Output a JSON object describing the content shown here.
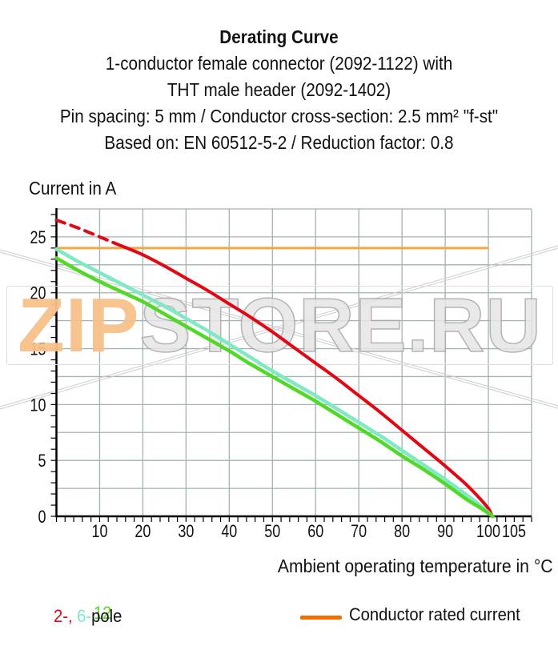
{
  "header": {
    "lines": [
      "Derating Curve",
      "1-conductor female connector (2092-1122) with",
      "THT male header (2092-1402)",
      "Pin spacing: 5 mm / Conductor cross-section: 2.5 mm² \"f-st\"",
      "Based on: EN 60512-5-2 / Reduction factor: 0.8"
    ]
  },
  "chart_data": {
    "type": "line",
    "title": "Derating Curve",
    "xlabel": "Ambient operating temperature in °C",
    "ylabel": "Current in A",
    "xlim": [
      0,
      110
    ],
    "ylim": [
      0,
      27.5
    ],
    "x_major_ticks": [
      10,
      20,
      30,
      40,
      50,
      60,
      70,
      80,
      90,
      100,
      105
    ],
    "y_major_ticks": [
      0,
      5,
      10,
      15,
      20,
      25
    ],
    "x_grid_step": 10,
    "y_grid_step": 2.5,
    "x_minor_tick_step": 2,
    "y_minor_tick_step": 1,
    "grid": true,
    "legend_position": "bottom",
    "axis_color": "#000000",
    "grid_color": "#a3b2b2",
    "series": [
      {
        "name": "2-pole",
        "color": "#e30613",
        "dash_until_x": 15,
        "points": [
          [
            0,
            26.5
          ],
          [
            5,
            25.8
          ],
          [
            10,
            25.0
          ],
          [
            15,
            24.2
          ],
          [
            20,
            23.4
          ],
          [
            25,
            22.4
          ],
          [
            30,
            21.3
          ],
          [
            35,
            20.2
          ],
          [
            40,
            19.0
          ],
          [
            45,
            17.8
          ],
          [
            50,
            16.5
          ],
          [
            55,
            15.1
          ],
          [
            60,
            13.7
          ],
          [
            65,
            12.3
          ],
          [
            70,
            10.8
          ],
          [
            75,
            9.3
          ],
          [
            80,
            7.7
          ],
          [
            85,
            6.1
          ],
          [
            90,
            4.5
          ],
          [
            95,
            2.8
          ],
          [
            98,
            1.6
          ],
          [
            100,
            0.7
          ],
          [
            100.8,
            0.1
          ]
        ]
      },
      {
        "name": "6-pole",
        "color": "#7fe9c4",
        "points": [
          [
            0,
            23.9
          ],
          [
            5,
            22.8
          ],
          [
            10,
            21.8
          ],
          [
            15,
            20.8
          ],
          [
            20,
            19.8
          ],
          [
            25,
            18.8
          ],
          [
            30,
            17.7
          ],
          [
            35,
            16.6
          ],
          [
            40,
            15.4
          ],
          [
            45,
            14.2
          ],
          [
            50,
            13.0
          ],
          [
            55,
            11.9
          ],
          [
            60,
            10.8
          ],
          [
            65,
            9.6
          ],
          [
            70,
            8.4
          ],
          [
            75,
            7.2
          ],
          [
            80,
            5.9
          ],
          [
            85,
            4.6
          ],
          [
            90,
            3.3
          ],
          [
            95,
            1.9
          ],
          [
            98,
            1.0
          ],
          [
            101,
            0
          ]
        ]
      },
      {
        "name": "12-pole",
        "color": "#52d827",
        "points": [
          [
            0,
            23.1
          ],
          [
            5,
            22.0
          ],
          [
            10,
            21.0
          ],
          [
            15,
            20.1
          ],
          [
            20,
            19.2
          ],
          [
            25,
            18.1
          ],
          [
            30,
            17.0
          ],
          [
            35,
            15.9
          ],
          [
            40,
            14.8
          ],
          [
            45,
            13.6
          ],
          [
            50,
            12.5
          ],
          [
            55,
            11.4
          ],
          [
            60,
            10.3
          ],
          [
            65,
            9.1
          ],
          [
            70,
            7.9
          ],
          [
            75,
            6.7
          ],
          [
            80,
            5.4
          ],
          [
            85,
            4.2
          ],
          [
            90,
            2.9
          ],
          [
            95,
            1.5
          ],
          [
            98,
            0.8
          ],
          [
            101,
            0
          ]
        ]
      }
    ],
    "rated_current_line": {
      "label": "Conductor rated current",
      "value": 24,
      "x_start": 0,
      "x_end": 100,
      "color": "#f2a843"
    }
  },
  "legend": {
    "poles": {
      "parts": [
        {
          "text": "2-,",
          "color": "#e30613"
        },
        {
          "text": "6-",
          "color": "#7fe9c4"
        },
        {
          "text": "12",
          "color": "#52d827"
        },
        {
          "text": "pole",
          "color": "#111111"
        }
      ]
    },
    "rated": {
      "label": "Conductor rated current",
      "swatch_color": "#ec7102"
    }
  },
  "watermark": {
    "parts": [
      {
        "text": "ZIP",
        "color": "#f7c08a"
      },
      {
        "text": "STORE.RU",
        "color": "#e6e6e6"
      }
    ]
  }
}
